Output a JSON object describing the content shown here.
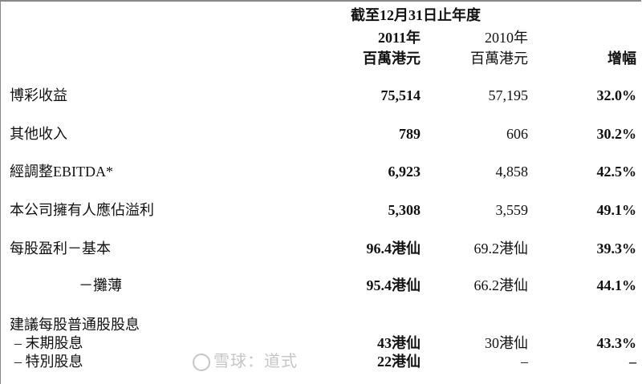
{
  "header": {
    "period": "截至12月31日止年度",
    "year_2011": "2011年",
    "year_2010": "2010年",
    "unit_2011": "百萬港元",
    "unit_2010": "百萬港元",
    "change": "增幅"
  },
  "rows": [
    {
      "label": "博彩收益",
      "v2011": "75,514",
      "v2010": "57,195",
      "change": "32.0%"
    },
    {
      "label": "其他收入",
      "v2011": "789",
      "v2010": "606",
      "change": "30.2%"
    },
    {
      "label": "經調整EBITDA*",
      "v2011": "6,923",
      "v2010": "4,858",
      "change": "42.5%"
    },
    {
      "label": "本公司擁有人應佔溢利",
      "v2011": "5,308",
      "v2010": "3,559",
      "change": "49.1%"
    },
    {
      "label": "每股盈利－基本",
      "v2011": "96.4港仙",
      "v2010": "69.2港仙",
      "change": "39.3%"
    },
    {
      "label": "－攤薄",
      "v2011": "95.4港仙",
      "v2010": "66.2港仙",
      "change": "44.1%"
    }
  ],
  "dividend": {
    "title": "建議每股普通股股息",
    "rows": [
      {
        "label": "– 末期股息",
        "v2011": "43港仙",
        "v2010": "30港仙",
        "change": "43.3%"
      },
      {
        "label": "– 特別股息",
        "v2011": "22港仙",
        "v2010": "–",
        "change": "–"
      }
    ]
  },
  "watermark": "雪球：道式"
}
